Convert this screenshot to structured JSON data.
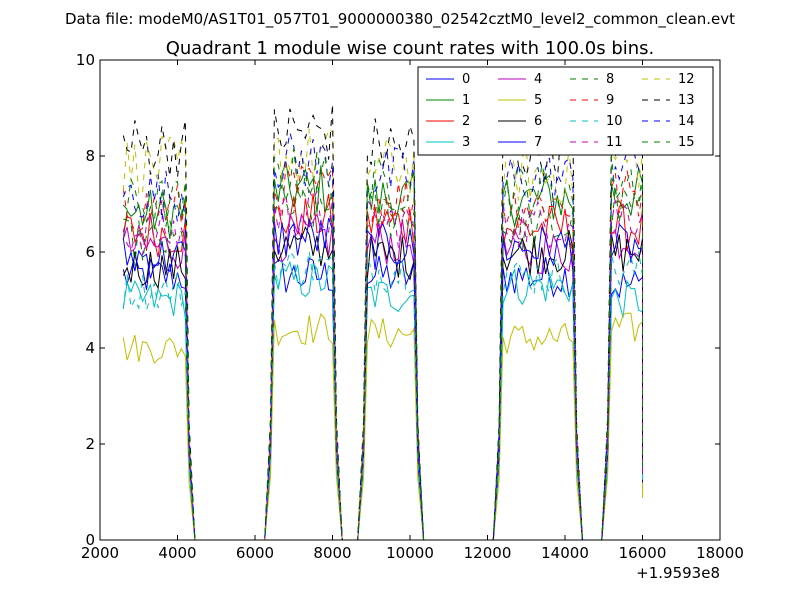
{
  "chart_data": {
    "type": "line",
    "suptitle": "Data file: modeM0/AS1T01_057T01_9000000380_02542cztM0_level2_common_clean.evt",
    "title": "Quadrant 1 module wise count rates with 100.0s bins.",
    "xlabel": "",
    "ylabel": "",
    "xlim": [
      2000,
      18000
    ],
    "ylim": [
      0,
      10
    ],
    "xticks": [
      2000,
      4000,
      6000,
      8000,
      10000,
      12000,
      14000,
      16000,
      18000
    ],
    "xtick_labels": [
      "2000",
      "4000",
      "6000",
      "8000",
      "10000",
      "12000",
      "14000",
      "16000",
      "18000"
    ],
    "yticks": [
      0,
      2,
      4,
      6,
      8,
      10
    ],
    "ytick_labels": [
      "0",
      "2",
      "4",
      "6",
      "8",
      "10"
    ],
    "x_offset_label": "+1.9593e8",
    "legend_position": "top-right",
    "segments": [
      {
        "x_start": 2600,
        "x_end": 4200
      },
      {
        "x_start": 6500,
        "x_end": 8000
      },
      {
        "x_start": 8900,
        "x_end": 10100
      },
      {
        "x_start": 12400,
        "x_end": 14200
      },
      {
        "x_start": 15200,
        "x_end": 16000
      }
    ],
    "gap_level": 0,
    "series": [
      {
        "name": "0",
        "color": "#0000ff",
        "style": "solid",
        "levels": [
          5.5,
          5.5,
          5.5,
          5.5,
          5.3
        ]
      },
      {
        "name": "1",
        "color": "#007f00",
        "style": "solid",
        "levels": [
          6.8,
          7.3,
          7.1,
          7.1,
          7.2
        ]
      },
      {
        "name": "2",
        "color": "#ff0000",
        "style": "solid",
        "levels": [
          6.4,
          6.7,
          6.6,
          6.5,
          6.5
        ]
      },
      {
        "name": "3",
        "color": "#00bfbf",
        "style": "solid",
        "levels": [
          5.0,
          5.4,
          5.1,
          5.3,
          5.0
        ]
      },
      {
        "name": "4",
        "color": "#bf00bf",
        "style": "solid",
        "levels": [
          6.1,
          6.3,
          6.2,
          6.0,
          6.3
        ]
      },
      {
        "name": "5",
        "color": "#bfbf00",
        "style": "solid",
        "levels": [
          4.0,
          4.4,
          4.3,
          4.2,
          4.4
        ]
      },
      {
        "name": "6",
        "color": "#000000",
        "style": "solid",
        "levels": [
          5.7,
          6.1,
          5.9,
          6.0,
          6.0
        ]
      },
      {
        "name": "7",
        "color": "#0000ff",
        "style": "solid",
        "levels": [
          5.9,
          6.3,
          6.1,
          6.1,
          6.1
        ]
      },
      {
        "name": "8",
        "color": "#007f00",
        "style": "dashed",
        "levels": [
          6.2,
          6.9,
          6.8,
          6.5,
          6.9
        ]
      },
      {
        "name": "9",
        "color": "#ff0000",
        "style": "dashed",
        "levels": [
          6.9,
          7.3,
          7.1,
          7.0,
          7.2
        ]
      },
      {
        "name": "10",
        "color": "#00bfbf",
        "style": "dashed",
        "levels": [
          5.2,
          5.7,
          5.6,
          5.5,
          5.6
        ]
      },
      {
        "name": "11",
        "color": "#bf00bf",
        "style": "dashed",
        "levels": [
          6.4,
          6.8,
          6.6,
          6.6,
          6.8
        ]
      },
      {
        "name": "12",
        "color": "#bfbf00",
        "style": "dashed",
        "levels": [
          7.8,
          8.0,
          7.8,
          7.6,
          7.9
        ]
      },
      {
        "name": "13",
        "color": "#000000",
        "style": "dashed",
        "levels": [
          8.2,
          8.5,
          8.2,
          8.1,
          8.5
        ]
      },
      {
        "name": "14",
        "color": "#0000ff",
        "style": "dashed",
        "levels": [
          7.2,
          7.9,
          7.6,
          7.5,
          7.9
        ]
      },
      {
        "name": "15",
        "color": "#007f00",
        "style": "dashed",
        "levels": [
          7.0,
          7.6,
          7.4,
          7.3,
          7.5
        ]
      }
    ]
  }
}
